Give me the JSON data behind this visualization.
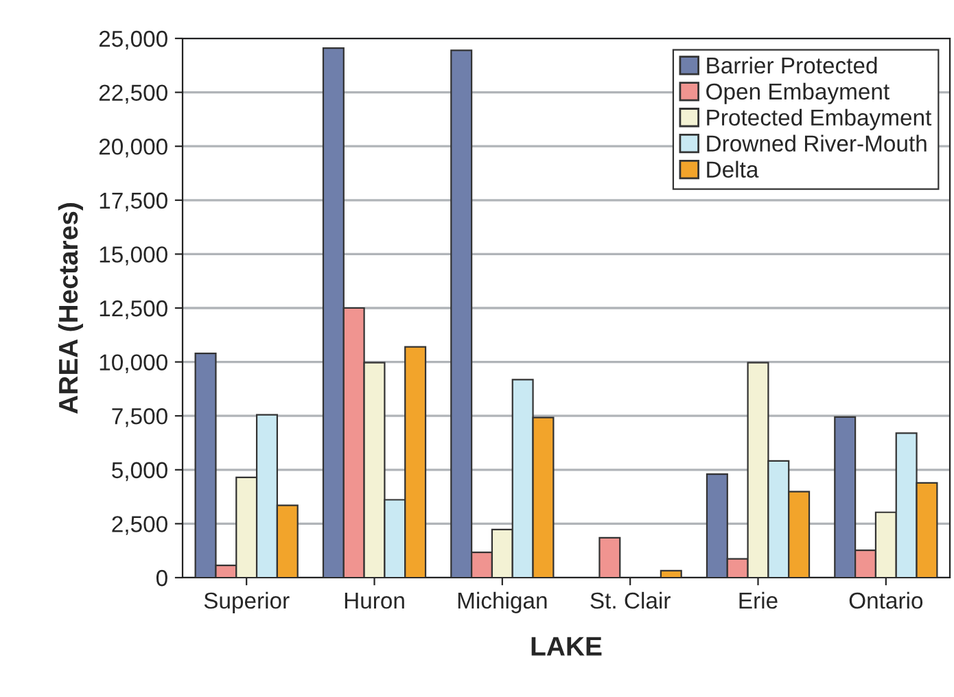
{
  "chart_data": {
    "type": "bar",
    "xlabel": "LAKE",
    "ylabel": "AREA (Hectares)",
    "categories": [
      "Superior",
      "Huron",
      "Michigan",
      "St. Clair",
      "Erie",
      "Ontario"
    ],
    "series": [
      {
        "name": "Barrier Protected",
        "color": "#6f7fab",
        "values": [
          10400,
          24550,
          24450,
          null,
          4800,
          7450
        ]
      },
      {
        "name": "Open Embayment",
        "color": "#f09490",
        "values": [
          570,
          12500,
          1170,
          1850,
          870,
          1270
        ]
      },
      {
        "name": "Protected Embayment",
        "color": "#f3f2d4",
        "values": [
          4650,
          9970,
          2230,
          null,
          9970,
          3030
        ]
      },
      {
        "name": "Drowned River-Mouth",
        "color": "#c9e9f3",
        "values": [
          7550,
          3610,
          9180,
          null,
          5410,
          6700
        ]
      },
      {
        "name": "Delta",
        "color": "#f2a42b",
        "values": [
          3350,
          10700,
          7420,
          320,
          3990,
          4390
        ]
      }
    ],
    "ylim": [
      0,
      25000
    ],
    "yticks": [
      {
        "value": 0,
        "label": "0"
      },
      {
        "value": 2500,
        "label": "2,500"
      },
      {
        "value": 5000,
        "label": "5,000"
      },
      {
        "value": 7500,
        "label": "7,500"
      },
      {
        "value": 10000,
        "label": "10,000"
      },
      {
        "value": 12500,
        "label": "12,500"
      },
      {
        "value": 15000,
        "label": "15,000"
      },
      {
        "value": 17500,
        "label": "17,500"
      },
      {
        "value": 20000,
        "label": "20,000"
      },
      {
        "value": 22500,
        "label": "22,500"
      },
      {
        "value": 25000,
        "label": "25,000"
      }
    ],
    "grid": "y",
    "legend": "top right"
  }
}
